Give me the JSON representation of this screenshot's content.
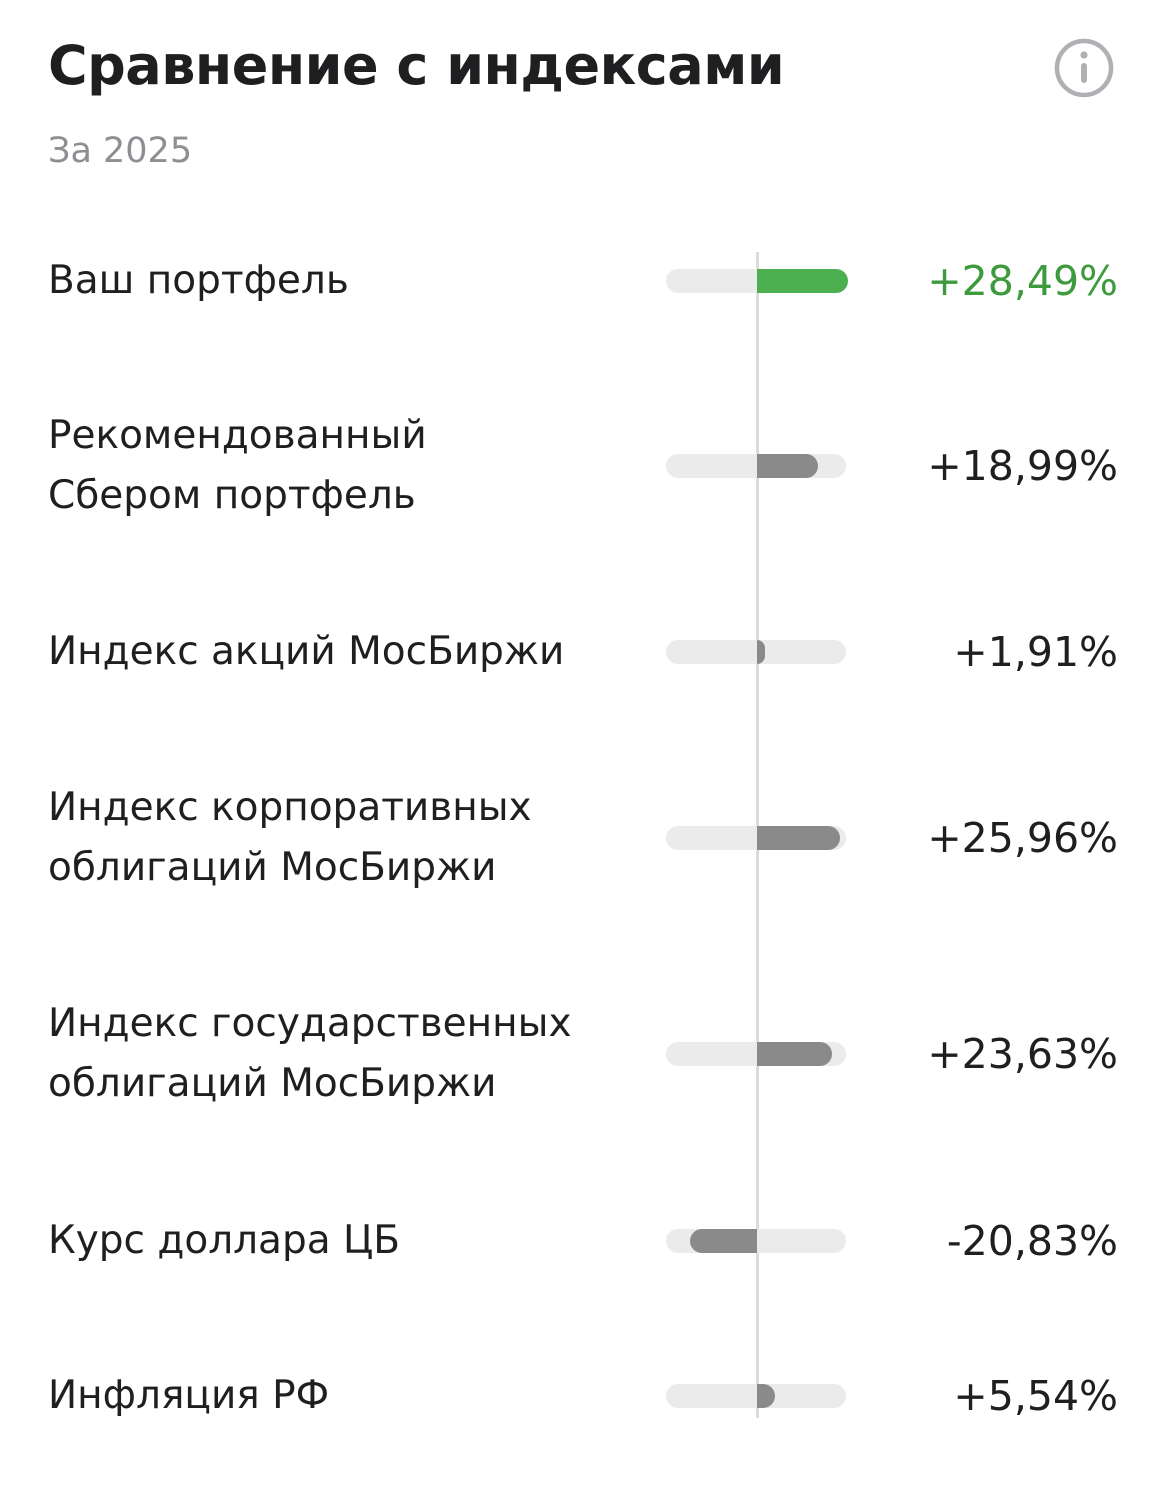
{
  "header": {
    "title": "Сравнение с индексами",
    "subtitle": "За 2025",
    "info_icon": "info-circle-icon"
  },
  "colors": {
    "positive_main": "#4caf50",
    "positive_main_text": "#3d9a3d",
    "bar_neutral": "#8a8a8a",
    "track": "#ebebeb",
    "axis": "#dcdcdc"
  },
  "chart_data": {
    "type": "bar",
    "orientation": "horizontal",
    "centered_axis": true,
    "categories": [
      "Ваш портфель",
      "Рекомендованный\nСбером портфель",
      "Индекс акций МосБиржи",
      "Индекс корпоративных\nоблигаций МосБиржи",
      "Индекс государственных\nоблигаций МосБиржи",
      "Курс доллара ЦБ",
      "Инфляция РФ"
    ],
    "values": [
      28.49,
      18.99,
      1.91,
      25.96,
      23.63,
      -20.83,
      5.54
    ],
    "value_labels": [
      "+28,49%",
      "+18,99%",
      "+1,91%",
      "+25,96%",
      "+23,63%",
      "-20,83%",
      "+5,54%"
    ],
    "highlight_index": 0,
    "xlim": [
      -28.49,
      28.49
    ]
  }
}
